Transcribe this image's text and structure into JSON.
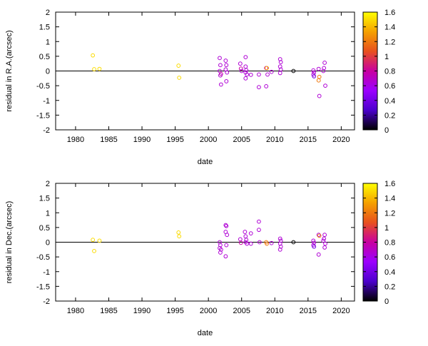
{
  "chart_data": [
    {
      "type": "scatter",
      "title": "",
      "xlabel": "date",
      "ylabel": "residual in R.A.(arcsec)",
      "xlim": [
        1977,
        2022
      ],
      "ylim": [
        -2,
        2
      ],
      "xticks": [
        "1980",
        "1985",
        "1990",
        "1995",
        "2000",
        "2005",
        "2010",
        "2015",
        "2020"
      ],
      "yticks": [
        "2",
        "1.5",
        "1",
        "0.5",
        "0",
        "-0.5",
        "-1",
        "-1.5",
        "-2"
      ],
      "zero_line": true,
      "colorbar": {
        "range": [
          0,
          1.6
        ],
        "ticks": [
          "1.6",
          "1.4",
          "1.2",
          "1",
          "0.8",
          "0.6",
          "0.4",
          "0.2",
          "0"
        ],
        "colors": [
          "#000000",
          "#4b00cc",
          "#9b00ff",
          "#c800a0",
          "#e8501e",
          "#f5a000",
          "#ffff00"
        ]
      },
      "points": [
        {
          "x": 1982.6,
          "y": 0.53,
          "c": 1.5
        },
        {
          "x": 1982.8,
          "y": 0.06,
          "c": 1.5
        },
        {
          "x": 1983.6,
          "y": 0.07,
          "c": 1.5
        },
        {
          "x": 1995.5,
          "y": 0.18,
          "c": 1.5
        },
        {
          "x": 1995.6,
          "y": -0.23,
          "c": 1.5
        },
        {
          "x": 2001.7,
          "y": 0.44,
          "c": 0.65
        },
        {
          "x": 2001.8,
          "y": 0.2,
          "c": 0.65
        },
        {
          "x": 2001.7,
          "y": 0.0,
          "c": 0.65
        },
        {
          "x": 2001.9,
          "y": -0.1,
          "c": 0.8
        },
        {
          "x": 2001.8,
          "y": -0.15,
          "c": 0.65
        },
        {
          "x": 2001.9,
          "y": -0.46,
          "c": 0.65
        },
        {
          "x": 2002.6,
          "y": 0.35,
          "c": 0.65
        },
        {
          "x": 2002.7,
          "y": 0.2,
          "c": 0.65
        },
        {
          "x": 2002.6,
          "y": 0.05,
          "c": 0.65
        },
        {
          "x": 2002.8,
          "y": -0.05,
          "c": 0.65
        },
        {
          "x": 2002.7,
          "y": -0.35,
          "c": 0.65
        },
        {
          "x": 2004.8,
          "y": 0.25,
          "c": 0.65
        },
        {
          "x": 2004.9,
          "y": 0.08,
          "c": 0.8
        },
        {
          "x": 2005.0,
          "y": 0.0,
          "c": 0.65
        },
        {
          "x": 2005.6,
          "y": 0.47,
          "c": 0.65
        },
        {
          "x": 2005.6,
          "y": 0.15,
          "c": 0.65
        },
        {
          "x": 2005.7,
          "y": 0.03,
          "c": 0.65
        },
        {
          "x": 2005.6,
          "y": -0.05,
          "c": 0.65
        },
        {
          "x": 2005.8,
          "y": -0.12,
          "c": 0.65
        },
        {
          "x": 2005.6,
          "y": -0.25,
          "c": 0.65
        },
        {
          "x": 2006.4,
          "y": -0.13,
          "c": 0.65
        },
        {
          "x": 2007.6,
          "y": -0.55,
          "c": 0.65
        },
        {
          "x": 2007.6,
          "y": -0.12,
          "c": 0.65
        },
        {
          "x": 2008.7,
          "y": 0.1,
          "c": 0.8
        },
        {
          "x": 2008.8,
          "y": 0.1,
          "c": 1.4
        },
        {
          "x": 2008.9,
          "y": -0.12,
          "c": 0.65
        },
        {
          "x": 2008.7,
          "y": -0.52,
          "c": 0.65
        },
        {
          "x": 2009.5,
          "y": -0.03,
          "c": 0.65
        },
        {
          "x": 2010.8,
          "y": 0.4,
          "c": 0.65
        },
        {
          "x": 2010.9,
          "y": 0.3,
          "c": 0.65
        },
        {
          "x": 2010.8,
          "y": 0.15,
          "c": 0.65
        },
        {
          "x": 2010.9,
          "y": 0.05,
          "c": 0.65
        },
        {
          "x": 2010.8,
          "y": -0.07,
          "c": 0.65
        },
        {
          "x": 2012.8,
          "y": 0.0,
          "c": 0.0
        },
        {
          "x": 2015.8,
          "y": 0.02,
          "c": 0.65
        },
        {
          "x": 2015.9,
          "y": -0.05,
          "c": 0.65
        },
        {
          "x": 2015.8,
          "y": -0.12,
          "c": 0.65
        },
        {
          "x": 2015.9,
          "y": -0.18,
          "c": 0.4
        },
        {
          "x": 2016.6,
          "y": 0.07,
          "c": 0.65
        },
        {
          "x": 2016.7,
          "y": -0.2,
          "c": 1.2
        },
        {
          "x": 2016.6,
          "y": -0.32,
          "c": 1.2
        },
        {
          "x": 2016.7,
          "y": -0.85,
          "c": 0.65
        },
        {
          "x": 2017.5,
          "y": 0.28,
          "c": 0.65
        },
        {
          "x": 2017.4,
          "y": 0.1,
          "c": 0.65
        },
        {
          "x": 2017.3,
          "y": 0.0,
          "c": 0.65
        },
        {
          "x": 2017.6,
          "y": -0.5,
          "c": 0.65
        }
      ]
    },
    {
      "type": "scatter",
      "title": "",
      "xlabel": "date",
      "ylabel": "residual in Dec.(arcsec)",
      "xlim": [
        1977,
        2022
      ],
      "ylim": [
        -2,
        2
      ],
      "xticks": [
        "1980",
        "1985",
        "1990",
        "1995",
        "2000",
        "2005",
        "2010",
        "2015",
        "2020"
      ],
      "yticks": [
        "2",
        "1.5",
        "1",
        "0.5",
        "0",
        "-0.5",
        "-1",
        "-1.5",
        "-2"
      ],
      "zero_line": true,
      "colorbar": {
        "range": [
          0,
          1.6
        ],
        "ticks": [
          "1.6",
          "1.4",
          "1.2",
          "1",
          "0.8",
          "0.6",
          "0.4",
          "0.2",
          "0"
        ],
        "colors": [
          "#000000",
          "#4b00cc",
          "#9b00ff",
          "#c800a0",
          "#e8501e",
          "#f5a000",
          "#ffff00"
        ]
      },
      "points": [
        {
          "x": 1982.6,
          "y": 0.08,
          "c": 1.5
        },
        {
          "x": 1982.8,
          "y": -0.3,
          "c": 1.5
        },
        {
          "x": 1983.6,
          "y": 0.05,
          "c": 1.5
        },
        {
          "x": 1995.5,
          "y": 0.33,
          "c": 1.5
        },
        {
          "x": 1995.6,
          "y": 0.2,
          "c": 1.5
        },
        {
          "x": 2001.7,
          "y": 0.0,
          "c": 0.65
        },
        {
          "x": 2001.8,
          "y": -0.1,
          "c": 0.65
        },
        {
          "x": 2001.7,
          "y": -0.2,
          "c": 0.65
        },
        {
          "x": 2001.9,
          "y": -0.25,
          "c": 0.65
        },
        {
          "x": 2001.8,
          "y": -0.35,
          "c": 0.65
        },
        {
          "x": 2002.6,
          "y": 0.58,
          "c": 0.65
        },
        {
          "x": 2002.7,
          "y": 0.55,
          "c": 0.65
        },
        {
          "x": 2002.6,
          "y": 0.35,
          "c": 0.65
        },
        {
          "x": 2002.8,
          "y": 0.25,
          "c": 0.65
        },
        {
          "x": 2002.7,
          "y": -0.1,
          "c": 0.65
        },
        {
          "x": 2002.6,
          "y": -0.48,
          "c": 0.65
        },
        {
          "x": 2004.8,
          "y": 0.1,
          "c": 0.65
        },
        {
          "x": 2004.9,
          "y": -0.02,
          "c": 0.8
        },
        {
          "x": 2005.5,
          "y": 0.35,
          "c": 0.65
        },
        {
          "x": 2005.6,
          "y": 0.2,
          "c": 0.65
        },
        {
          "x": 2005.7,
          "y": 0.08,
          "c": 0.65
        },
        {
          "x": 2005.6,
          "y": 0.0,
          "c": 0.65
        },
        {
          "x": 2005.8,
          "y": -0.05,
          "c": 0.65
        },
        {
          "x": 2006.4,
          "y": 0.3,
          "c": 0.65
        },
        {
          "x": 2006.4,
          "y": -0.05,
          "c": 0.65
        },
        {
          "x": 2007.6,
          "y": 0.7,
          "c": 0.65
        },
        {
          "x": 2007.6,
          "y": 0.42,
          "c": 0.65
        },
        {
          "x": 2007.7,
          "y": 0.0,
          "c": 0.65
        },
        {
          "x": 2008.7,
          "y": 0.0,
          "c": 1.2
        },
        {
          "x": 2008.8,
          "y": -0.05,
          "c": 1.2
        },
        {
          "x": 2009.5,
          "y": -0.03,
          "c": 0.65
        },
        {
          "x": 2010.8,
          "y": 0.12,
          "c": 0.65
        },
        {
          "x": 2010.9,
          "y": 0.05,
          "c": 0.65
        },
        {
          "x": 2010.8,
          "y": -0.05,
          "c": 0.65
        },
        {
          "x": 2010.9,
          "y": -0.15,
          "c": 0.65
        },
        {
          "x": 2010.8,
          "y": -0.25,
          "c": 0.65
        },
        {
          "x": 2012.8,
          "y": 0.0,
          "c": 0.0
        },
        {
          "x": 2015.8,
          "y": 0.05,
          "c": 0.65
        },
        {
          "x": 2015.9,
          "y": -0.02,
          "c": 0.65
        },
        {
          "x": 2015.8,
          "y": -0.1,
          "c": 0.65
        },
        {
          "x": 2015.9,
          "y": -0.15,
          "c": 0.4
        },
        {
          "x": 2016.6,
          "y": 0.25,
          "c": 0.65
        },
        {
          "x": 2016.7,
          "y": 0.22,
          "c": 1.2
        },
        {
          "x": 2016.6,
          "y": -0.42,
          "c": 0.65
        },
        {
          "x": 2017.5,
          "y": 0.25,
          "c": 0.65
        },
        {
          "x": 2017.4,
          "y": 0.12,
          "c": 0.65
        },
        {
          "x": 2017.3,
          "y": 0.05,
          "c": 0.65
        },
        {
          "x": 2017.6,
          "y": -0.05,
          "c": 0.65
        },
        {
          "x": 2017.5,
          "y": -0.18,
          "c": 0.65
        }
      ]
    }
  ]
}
